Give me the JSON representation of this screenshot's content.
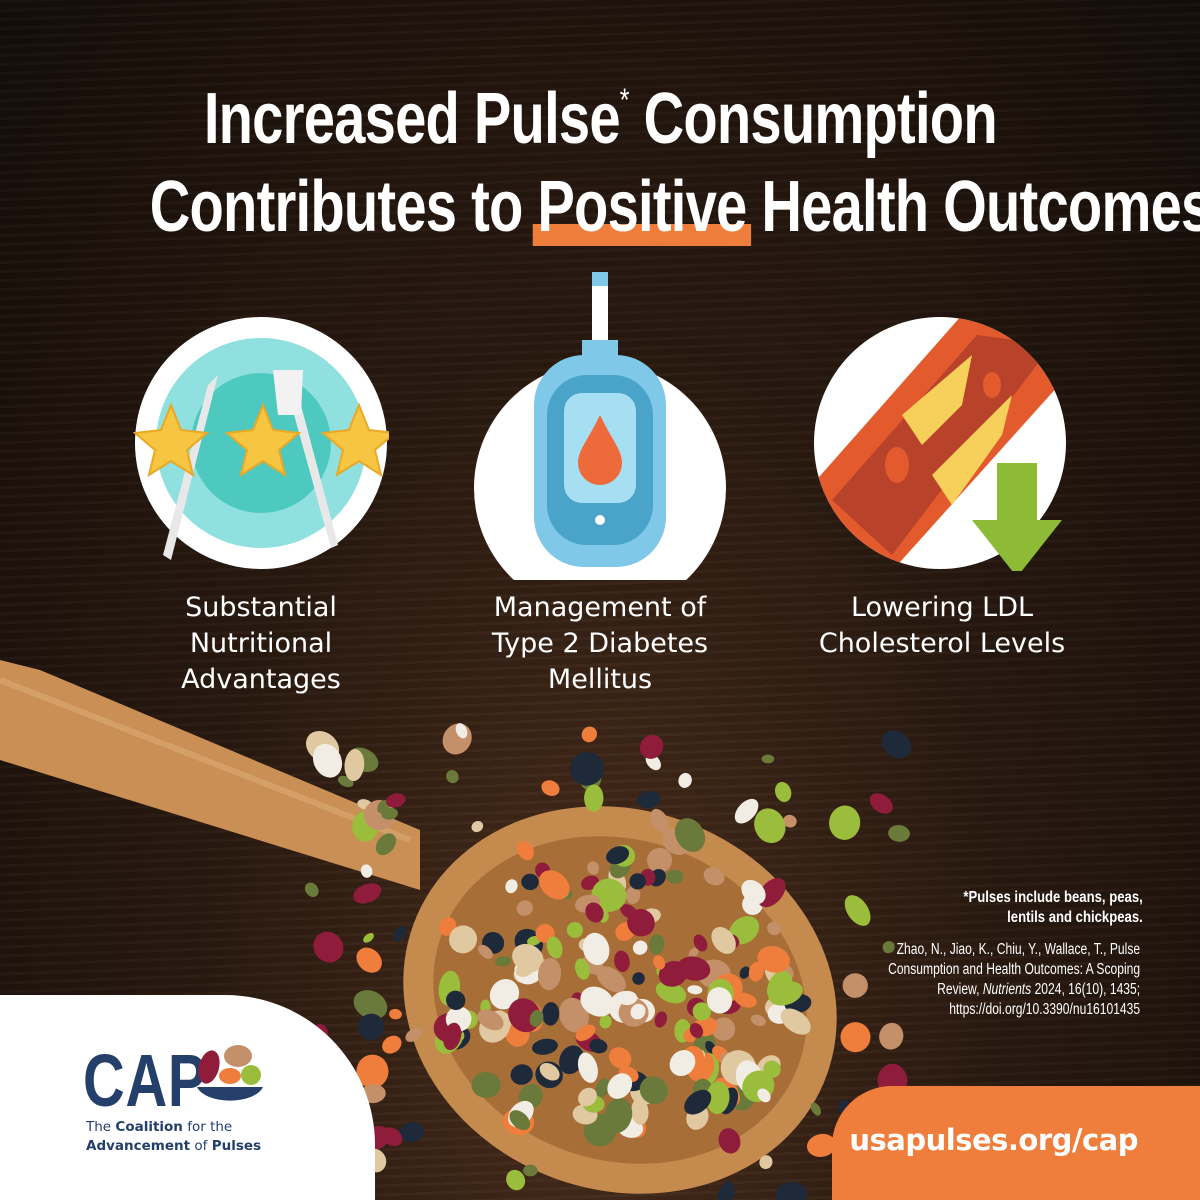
{
  "title": {
    "line1_a": "Increased Pulse",
    "asterisk": "*",
    "line1_b": "Consumption",
    "line2_a": "Contributes to",
    "line2_highlight": "Positive",
    "line2_b": "Health Outcomes"
  },
  "benefits": [
    {
      "icon": "plate-stars-icon",
      "label_lines": [
        "Substantial",
        "Nutritional",
        "Advantages"
      ]
    },
    {
      "icon": "glucose-meter-icon",
      "label_lines": [
        "Management of",
        "Type 2 Diabetes",
        "Mellitus"
      ]
    },
    {
      "icon": "artery-cholesterol-icon",
      "label_lines": [
        "Lowering LDL",
        "Cholesterol Levels"
      ]
    }
  ],
  "footnote": {
    "line1": "*Pulses include beans, peas,",
    "line2": "lentils and chickpeas."
  },
  "citation": {
    "line1": "Zhao, N., Jiao, K., Chiu, Y., Wallace, T., Pulse",
    "line2": "Consumption and Health Outcomes: A Scoping",
    "line3_a": "Review, ",
    "journal": "Nutrients",
    "line3_b": " 2024, 16(10), 1435;",
    "line4": "https://doi.org/10.3390/nu16101435"
  },
  "logo": {
    "wordmark": "CAP",
    "tag1_a": "The ",
    "tag1_b": "Coalition",
    "tag1_c": " for the",
    "tag2_a": "Advancement",
    "tag2_b": " of ",
    "tag2_c": "Pulses"
  },
  "url": "usapulses.org/cap",
  "colors": {
    "accent": "#ef7d3c",
    "brand_navy": "#233f6a",
    "background": "#2a1a10"
  }
}
